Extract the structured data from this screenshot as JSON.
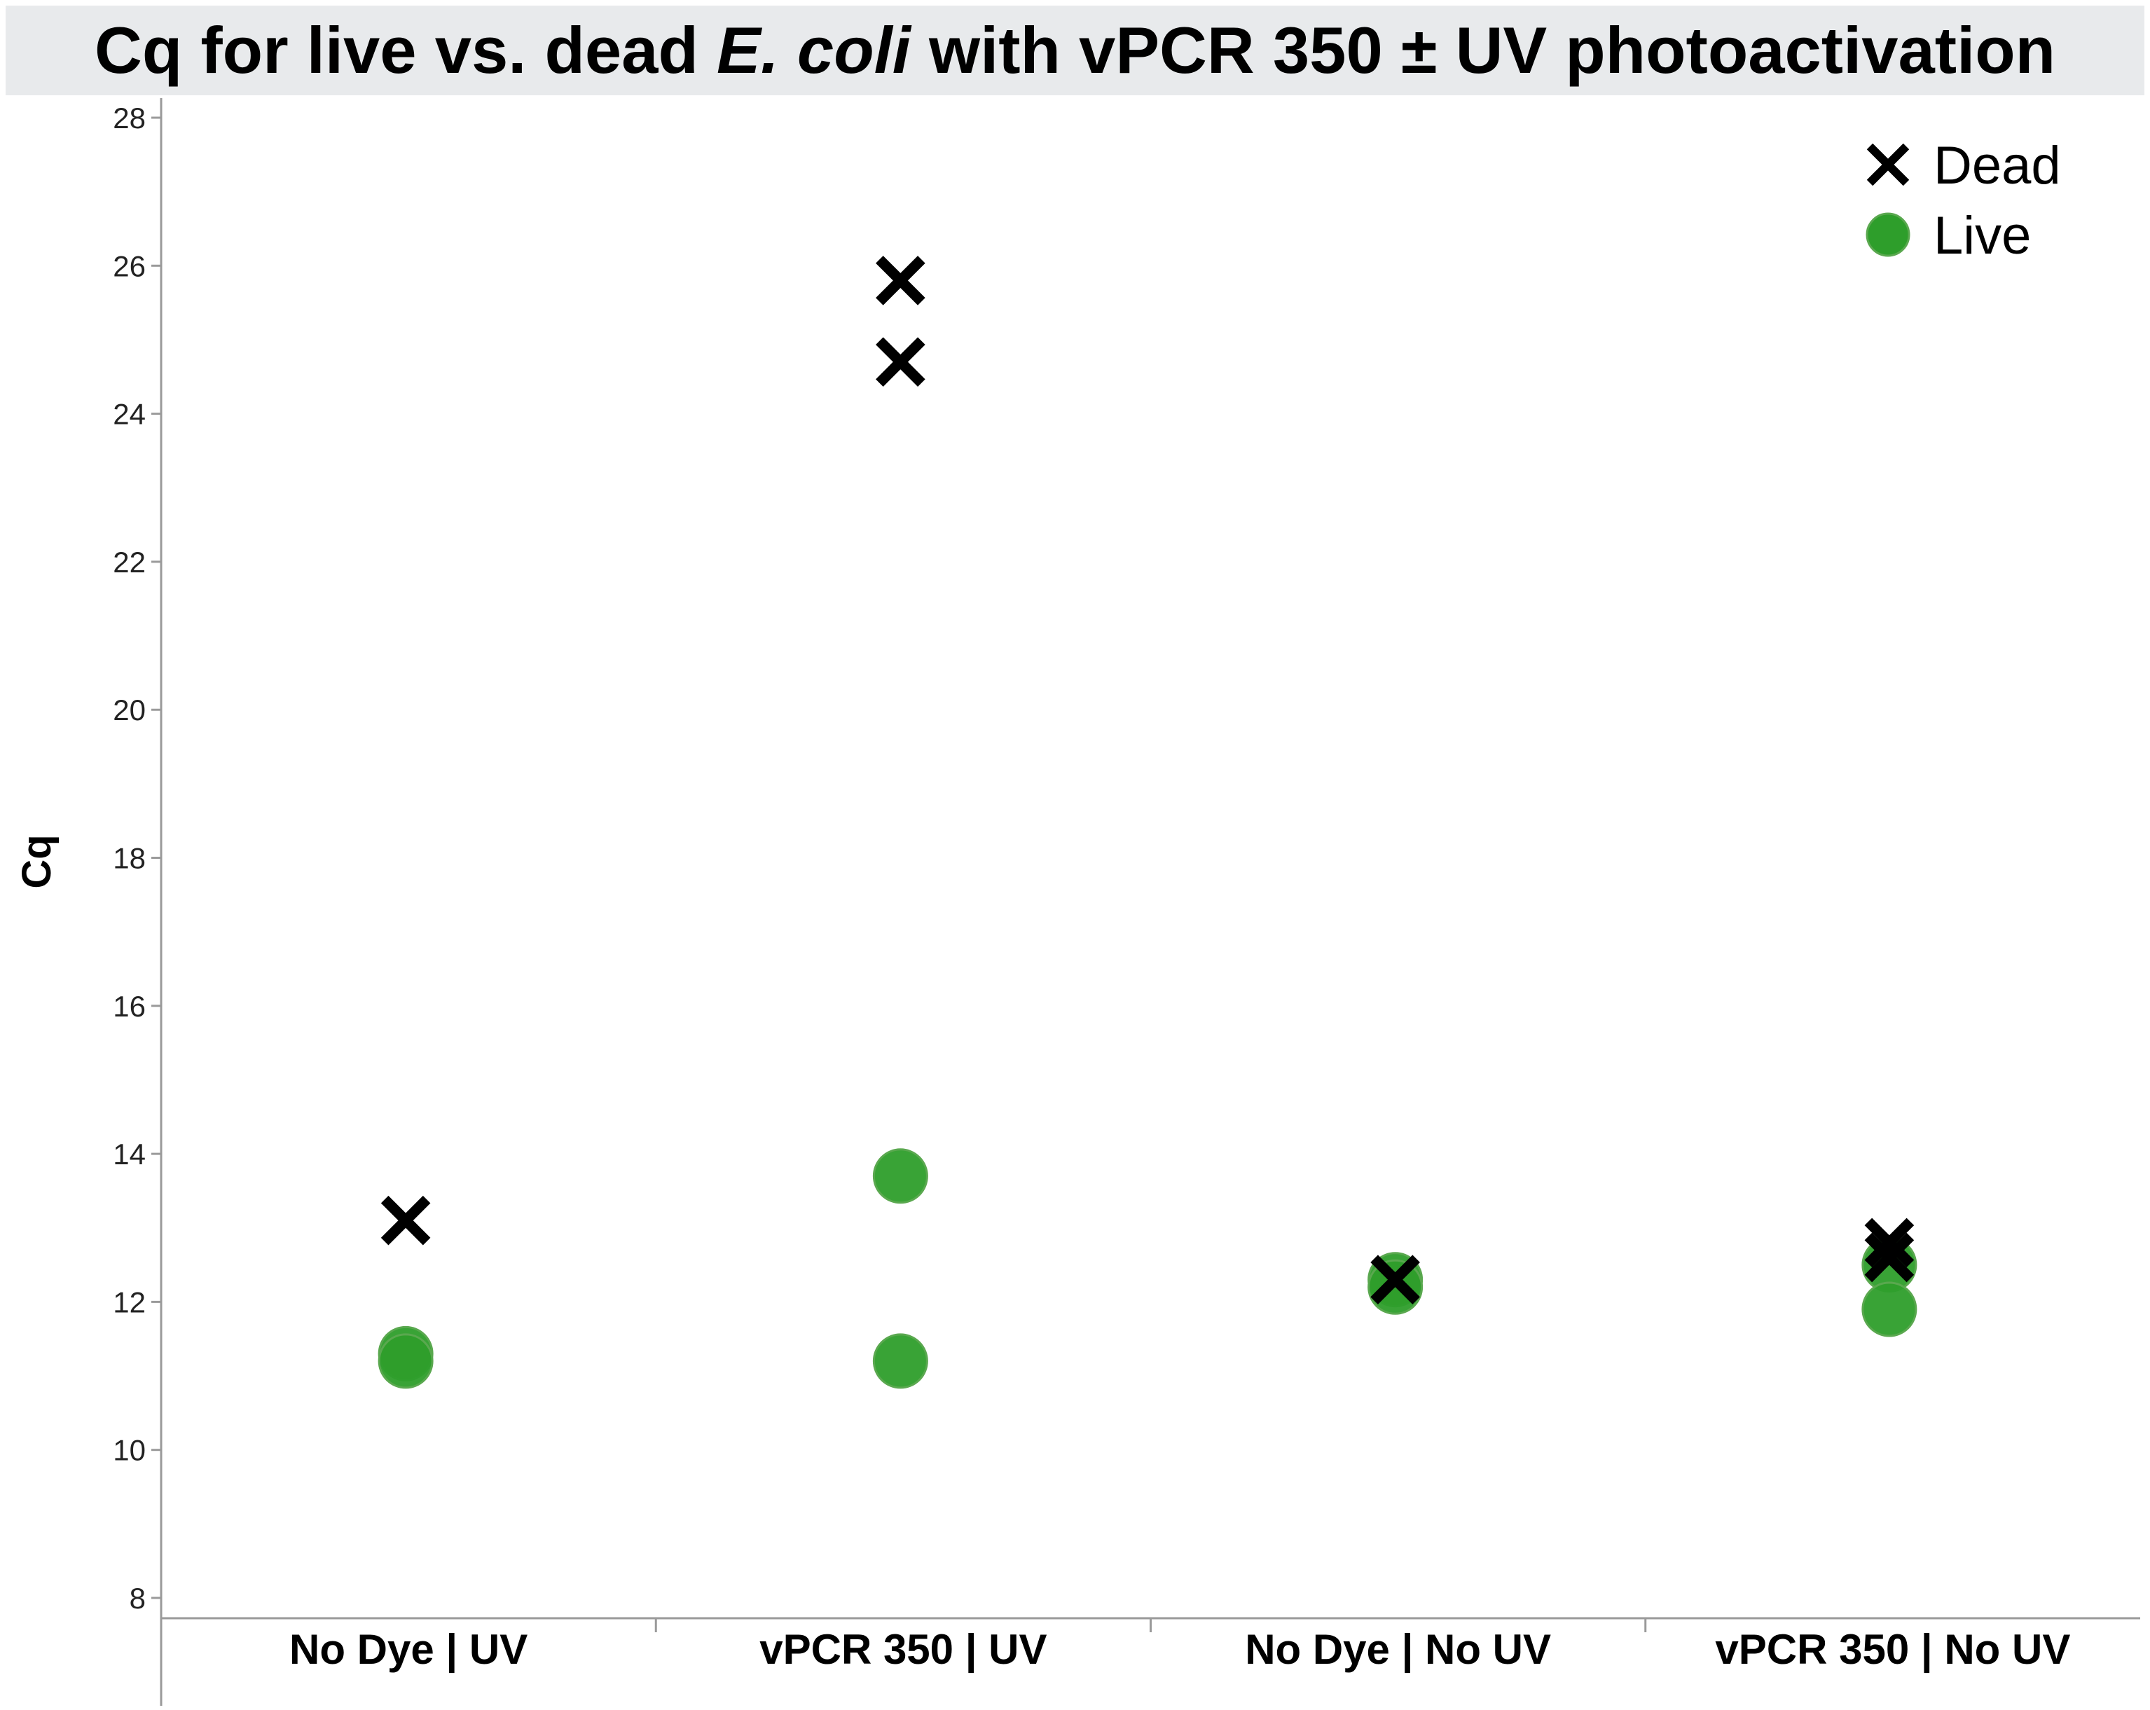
{
  "title": {
    "prefix": "Cq for live vs. dead ",
    "italic": "E. coli",
    "suffix": " with vPCR 350 ± UV photoactivation"
  },
  "colors": {
    "live": "#2e9e2b",
    "dead": "#000000",
    "title_background": "#e8eaec",
    "axis": "#9a9a9a"
  },
  "chart_data": {
    "type": "scatter",
    "title": "Cq for live vs. dead E. coli with vPCR 350 ± UV photoactivation",
    "xlabel": "",
    "ylabel": "Cq",
    "ylim": [
      8,
      28
    ],
    "yticks": [
      8,
      10,
      12,
      14,
      16,
      18,
      20,
      22,
      24,
      26,
      28
    ],
    "grid": false,
    "legend_position": "top-right",
    "categories": [
      "No Dye | UV",
      "vPCR 350 | UV",
      "No Dye | No UV",
      "vPCR 350 | No UV"
    ],
    "series": [
      {
        "name": "Dead",
        "marker": "x",
        "color": "#000000",
        "points": [
          {
            "category": "No Dye | UV",
            "y": 13.1
          },
          {
            "category": "vPCR 350 | UV",
            "y": 25.8
          },
          {
            "category": "vPCR 350 | UV",
            "y": 24.7
          },
          {
            "category": "No Dye | No UV",
            "y": 12.3
          },
          {
            "category": "vPCR 350 | No UV",
            "y": 12.8
          },
          {
            "category": "vPCR 350 | No UV",
            "y": 12.6
          }
        ]
      },
      {
        "name": "Live",
        "marker": "circle",
        "color": "#2e9e2b",
        "points": [
          {
            "category": "No Dye | UV",
            "y": 11.3
          },
          {
            "category": "No Dye | UV",
            "y": 11.2
          },
          {
            "category": "vPCR 350 | UV",
            "y": 13.7
          },
          {
            "category": "vPCR 350 | UV",
            "y": 11.2
          },
          {
            "category": "No Dye | No UV",
            "y": 12.3
          },
          {
            "category": "No Dye | No UV",
            "y": 12.2
          },
          {
            "category": "vPCR 350 | No UV",
            "y": 12.5
          },
          {
            "category": "vPCR 350 | No UV",
            "y": 11.9
          }
        ]
      }
    ]
  }
}
